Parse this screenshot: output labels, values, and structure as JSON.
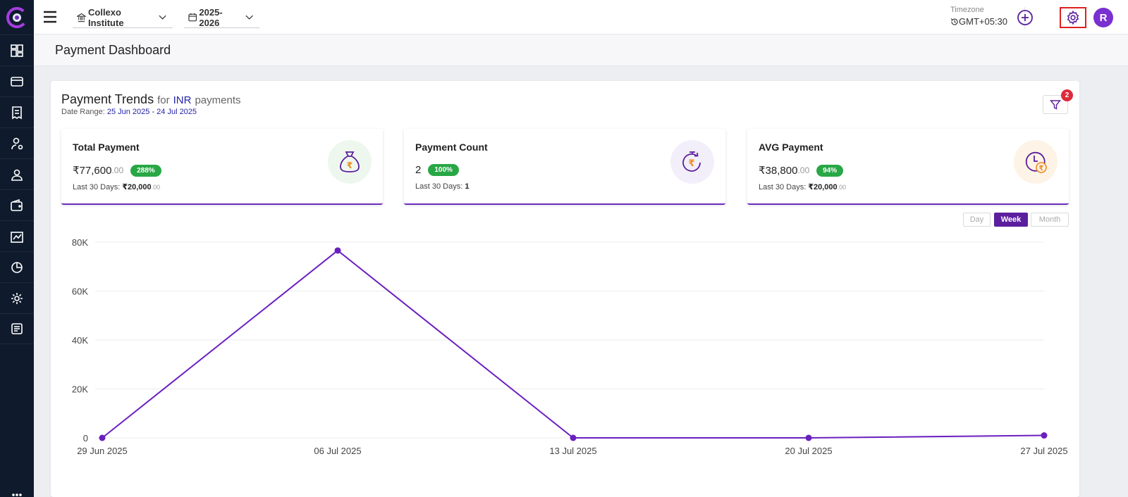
{
  "header": {
    "institute": "Collexo Institute",
    "year": "2025-2026",
    "timezone_label": "Timezone",
    "timezone_value": "GMT+05:30",
    "avatar_initial": "R"
  },
  "page": {
    "title": "Payment Dashboard"
  },
  "trends": {
    "title": "Payment Trends",
    "for_label": "for",
    "currency": "INR",
    "payments_label": "payments",
    "date_range_label": "Date Range:",
    "date_range": "25 Jun 2025 - 24 Jul 2025",
    "filter_count": "2"
  },
  "stats": [
    {
      "label": "Total Payment",
      "value": "77,600",
      "decimals": ".00",
      "currency": "₹",
      "badge": "288%",
      "sub_label": "Last 30 Days:",
      "sub_value": "20,000",
      "sub_decimals": ".00",
      "sub_currency": "₹",
      "icon": "money-bag-icon"
    },
    {
      "label": "Payment Count",
      "value": "2",
      "decimals": "",
      "currency": "",
      "badge": "100%",
      "sub_label": "Last 30 Days:",
      "sub_value": "1",
      "sub_decimals": "",
      "sub_currency": "",
      "icon": "rupee-timer-icon"
    },
    {
      "label": "AVG Payment",
      "value": "38,800",
      "decimals": ".00",
      "currency": "₹",
      "badge": "94%",
      "sub_label": "Last 30 Days:",
      "sub_value": "20,000",
      "sub_decimals": ".00",
      "sub_currency": "₹",
      "icon": "clock-rupee-icon"
    }
  ],
  "period_toggle": {
    "day": "Day",
    "week": "Week",
    "month": "Month",
    "selected": "Week"
  },
  "colors": {
    "accent": "#6a2bbd",
    "line": "#6a20c0",
    "badge_green": "#28a745",
    "sidebar": "#0f1b2d"
  },
  "chart_data": {
    "type": "line",
    "categories": [
      "29 Jun 2025",
      "06 Jul 2025",
      "13 Jul 2025",
      "20 Jul 2025",
      "27 Jul 2025"
    ],
    "series": [
      {
        "values": [
          0,
          76600,
          0,
          0,
          1000
        ]
      }
    ],
    "ylim": [
      0,
      80000
    ],
    "yticks": [
      0,
      20000,
      40000,
      60000,
      80000
    ],
    "ytick_labels": [
      "0",
      "20K",
      "40K",
      "60K",
      "80K"
    ],
    "grid": true
  }
}
